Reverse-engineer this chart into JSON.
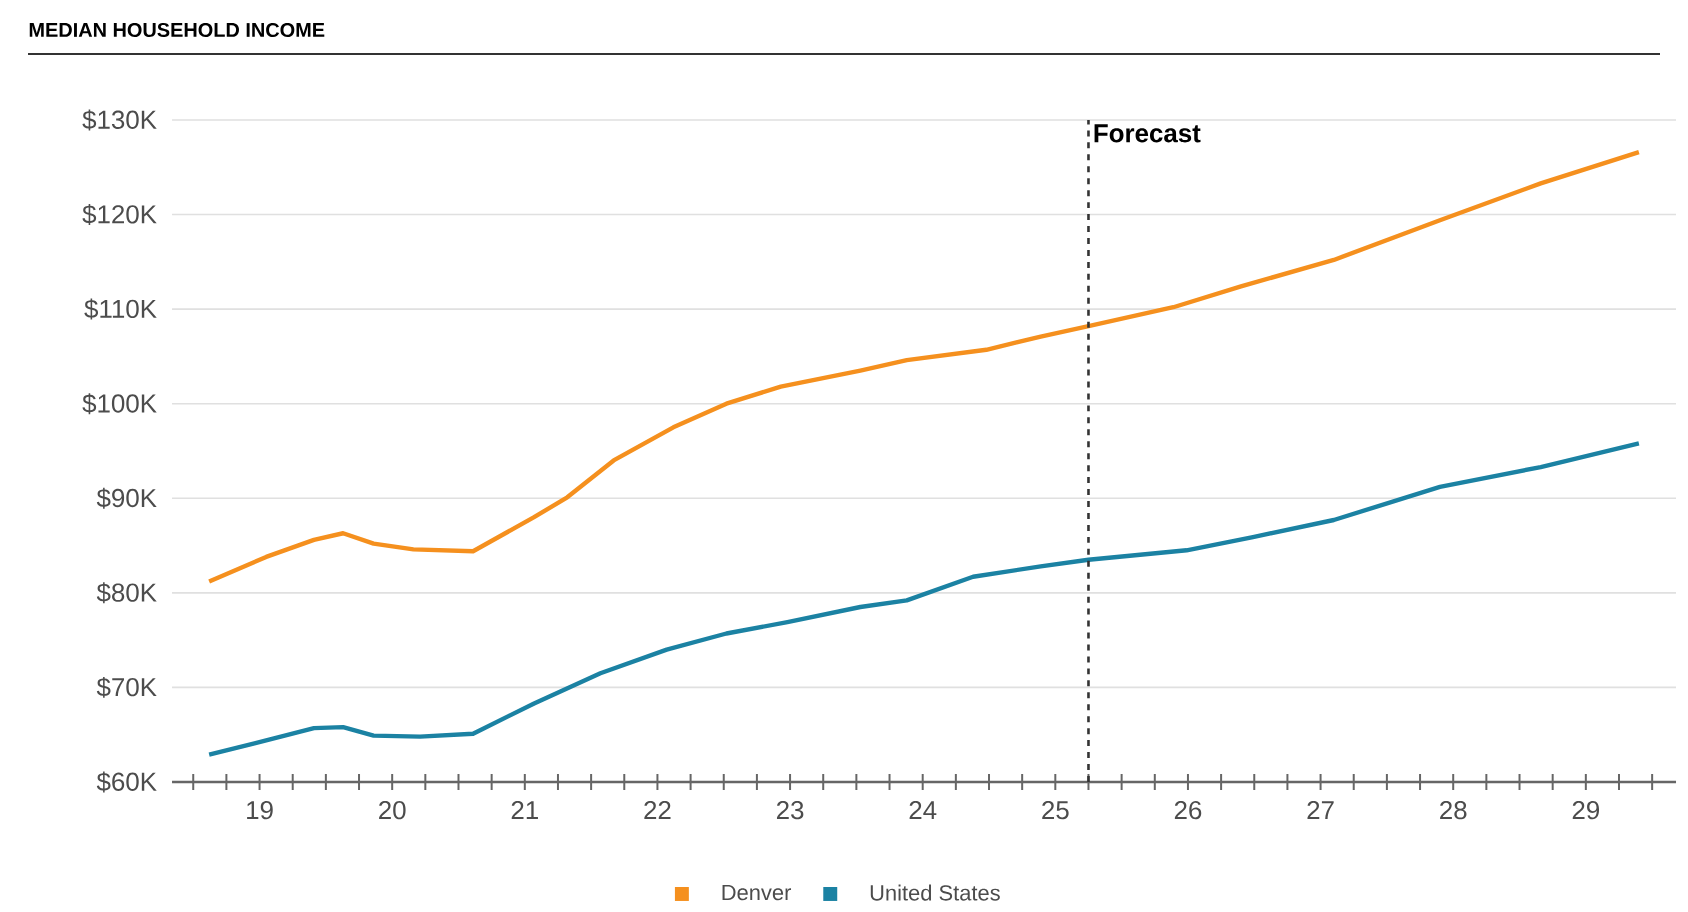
{
  "chart_data": {
    "type": "line",
    "title": "MEDIAN HOUSEHOLD INCOME",
    "xlim": [
      18.34,
      29.68
    ],
    "ylim": [
      60,
      130
    ],
    "xticks": [
      {
        "value": 18.5,
        "label": null
      },
      {
        "value": 18.75,
        "label": null
      },
      19,
      {
        "value": 19.25,
        "label": null
      },
      {
        "value": 19.5,
        "label": null
      },
      {
        "value": 19.75,
        "label": null
      },
      20,
      {
        "value": 20.25,
        "label": null
      },
      {
        "value": 20.5,
        "label": null
      },
      {
        "value": 20.75,
        "label": null
      },
      21,
      {
        "value": 21.25,
        "label": null
      },
      {
        "value": 21.5,
        "label": null
      },
      {
        "value": 21.75,
        "label": null
      },
      22,
      {
        "value": 22.25,
        "label": null
      },
      {
        "value": 22.5,
        "label": null
      },
      {
        "value": 22.75,
        "label": null
      },
      23,
      {
        "value": 23.25,
        "label": null
      },
      {
        "value": 23.5,
        "label": null
      },
      {
        "value": 23.75,
        "label": null
      },
      24,
      {
        "value": 24.25,
        "label": null
      },
      {
        "value": 24.5,
        "label": null
      },
      {
        "value": 24.75,
        "label": null
      },
      25,
      {
        "value": 25.25,
        "label": null
      },
      {
        "value": 25.5,
        "label": null
      },
      {
        "value": 25.75,
        "label": null
      },
      26,
      {
        "value": 26.25,
        "label": null
      },
      {
        "value": 26.5,
        "label": null
      },
      {
        "value": 26.75,
        "label": null
      },
      27,
      {
        "value": 27.25,
        "label": null
      },
      {
        "value": 27.5,
        "label": null
      },
      {
        "value": 27.75,
        "label": null
      },
      28,
      {
        "value": 28.25,
        "label": null
      },
      {
        "value": 28.5,
        "label": null
      },
      {
        "value": 28.75,
        "label": null
      },
      29,
      {
        "value": 29.25,
        "label": null
      },
      {
        "value": 29.5,
        "label": null
      }
    ],
    "yticks": [
      {
        "value": 60,
        "label": "$60K"
      },
      {
        "value": 70,
        "label": "$70K"
      },
      {
        "value": 80,
        "label": "$80K"
      },
      {
        "value": 90,
        "label": "$90K"
      },
      {
        "value": 100,
        "label": "$100K"
      },
      {
        "value": 110,
        "label": "$110K"
      },
      {
        "value": 120,
        "label": "$120K"
      },
      {
        "value": 130,
        "label": "$130K"
      }
    ],
    "grid": "y",
    "legend": "bottom",
    "ref_lines": [
      {
        "axis": "x",
        "value": 25.25,
        "label": "Forecast",
        "color": "#333333",
        "line_style": "dashed"
      }
    ],
    "series": [
      {
        "name": "Denver",
        "color": "#f5901e",
        "x": [
          18.62,
          19.05,
          19.41,
          19.63,
          19.86,
          20.16,
          20.61,
          21.07,
          21.32,
          21.67,
          22.12,
          22.52,
          22.93,
          23.53,
          23.88,
          24.48,
          24.89,
          25.25,
          25.89,
          26.4,
          27.1,
          27.9,
          28.66,
          29.4
        ],
        "values": [
          81.2,
          83.8,
          85.6,
          86.3,
          85.2,
          84.6,
          84.4,
          88.0,
          90.1,
          94.0,
          97.5,
          100.0,
          101.8,
          103.5,
          104.6,
          105.7,
          107.1,
          108.2,
          110.2,
          112.4,
          115.2,
          119.4,
          123.3,
          126.6
        ]
      },
      {
        "name": "United States",
        "color": "#1b82a3",
        "x": [
          18.62,
          19.05,
          19.41,
          19.63,
          19.86,
          20.21,
          20.61,
          21.07,
          21.57,
          22.07,
          22.52,
          22.98,
          23.53,
          23.88,
          24.38,
          24.89,
          25.25,
          25.99,
          26.49,
          27.1,
          27.9,
          28.66,
          29.4
        ],
        "values": [
          62.9,
          64.4,
          65.7,
          65.8,
          64.9,
          64.8,
          65.1,
          68.3,
          71.5,
          74.0,
          75.7,
          76.9,
          78.5,
          79.2,
          81.7,
          82.8,
          83.5,
          84.5,
          85.9,
          87.7,
          91.2,
          93.3,
          95.8
        ]
      }
    ]
  }
}
